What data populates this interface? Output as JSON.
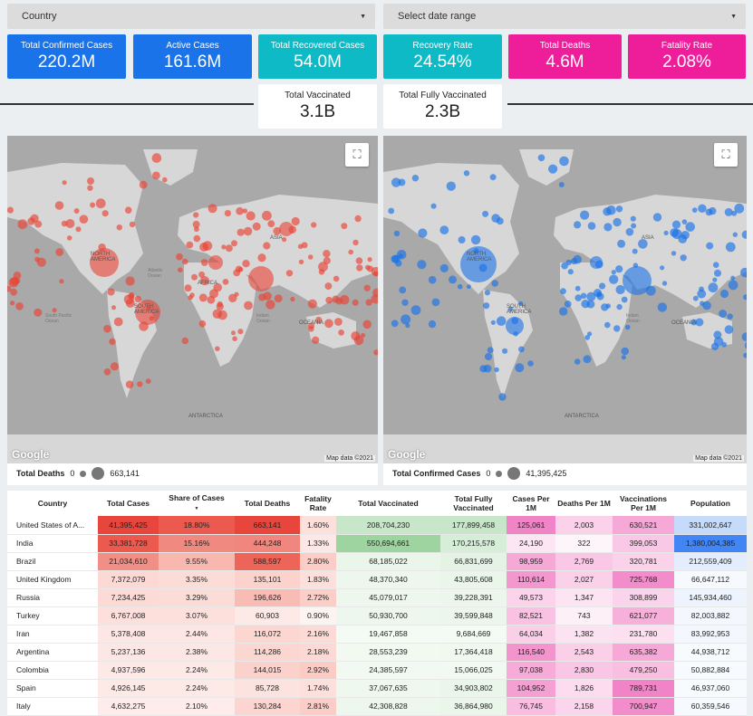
{
  "filters": {
    "country_label": "Country",
    "date_label": "Select date range"
  },
  "kpis": [
    {
      "label": "Total Confirmed Cases",
      "value": "220.2M",
      "color": "#1a73e8"
    },
    {
      "label": "Active Cases",
      "value": "161.6M",
      "color": "#1a73e8"
    },
    {
      "label": "Total Recovered Cases",
      "value": "54.0M",
      "color": "#0ebac5"
    },
    {
      "label": "Recovery Rate",
      "value": "24.54%",
      "color": "#0ebac5"
    },
    {
      "label": "Total Deaths",
      "value": "4.6M",
      "color": "#ee1e9b"
    },
    {
      "label": "Fatality Rate",
      "value": "2.08%",
      "color": "#ee1e9b"
    }
  ],
  "vaccine_kpis": [
    {
      "label": "Total Vaccinated",
      "value": "3.1B"
    },
    {
      "label": "Total Fully Vaccinated",
      "value": "2.3B"
    }
  ],
  "map_left": {
    "legend_title": "Total Deaths",
    "legend_min": "0",
    "legend_max": "663,141",
    "bubble_color": "#ea4335",
    "google": "Google",
    "map_data": "Map data ©2021"
  },
  "map_right": {
    "legend_title": "Total Confirmed Cases",
    "legend_min": "0",
    "legend_max": "41,395,425",
    "bubble_color": "#1a73e8",
    "google": "Google",
    "map_data": "Map data ©2021"
  },
  "map_labels": {
    "north_america": "NORTH AMERICA",
    "south_america": "SOUTH AMERICA",
    "africa": "AFRICA",
    "asia": "ASIA",
    "oceania": "OCEANIA",
    "antarctica": "ANTARCTICA",
    "atlantic": "Atlantic Ocean",
    "indian": "Indian Ocean",
    "south_pacific": "South Pacific Ocean"
  },
  "table": {
    "headers": [
      "Country",
      "Total Cases",
      "Share of Cases",
      "Total Deaths",
      "Fatality Rate",
      "Total Vaccinated",
      "Total Fully Vaccinated",
      "Cases Per 1M",
      "Deaths Per 1M",
      "Vaccinations Per 1M",
      "Population"
    ],
    "sort_indicator": "▼",
    "rows": [
      [
        "United States of A...",
        "41,395,425",
        "18.80%",
        "663,141",
        "1.60%",
        "208,704,230",
        "177,899,458",
        "125,061",
        "2,003",
        "630,521",
        "331,002,647"
      ],
      [
        "India",
        "33,381,728",
        "15.16%",
        "444,248",
        "1.33%",
        "550,694,661",
        "170,215,578",
        "24,190",
        "322",
        "399,053",
        "1,380,004,385"
      ],
      [
        "Brazil",
        "21,034,610",
        "9.55%",
        "588,597",
        "2.80%",
        "68,185,022",
        "66,831,699",
        "98,959",
        "2,769",
        "320,781",
        "212,559,409"
      ],
      [
        "United Kingdom",
        "7,372,079",
        "3.35%",
        "135,101",
        "1.83%",
        "48,370,340",
        "43,805,608",
        "110,614",
        "2,027",
        "725,768",
        "66,647,112"
      ],
      [
        "Russia",
        "7,234,425",
        "3.29%",
        "196,626",
        "2.72%",
        "45,079,017",
        "39,228,391",
        "49,573",
        "1,347",
        "308,899",
        "145,934,460"
      ],
      [
        "Turkey",
        "6,767,008",
        "3.07%",
        "60,903",
        "0.90%",
        "50,930,700",
        "39,599,848",
        "82,521",
        "743",
        "621,077",
        "82,003,882"
      ],
      [
        "Iran",
        "5,378,408",
        "2.44%",
        "116,072",
        "2.16%",
        "19,467,858",
        "9,684,669",
        "64,034",
        "1,382",
        "231,780",
        "83,992,953"
      ],
      [
        "Argentina",
        "5,237,136",
        "2.38%",
        "114,286",
        "2.18%",
        "28,553,239",
        "17,364,418",
        "116,540",
        "2,543",
        "635,382",
        "44,938,712"
      ],
      [
        "Colombia",
        "4,937,596",
        "2.24%",
        "144,015",
        "2.92%",
        "24,385,597",
        "15,066,025",
        "97,038",
        "2,830",
        "479,250",
        "50,882,884"
      ],
      [
        "Spain",
        "4,926,145",
        "2.24%",
        "85,728",
        "1.74%",
        "37,067,635",
        "34,903,802",
        "104,952",
        "1,826",
        "789,731",
        "46,937,060"
      ],
      [
        "Italy",
        "4,632,275",
        "2.10%",
        "130,284",
        "2.81%",
        "42,308,828",
        "36,864,980",
        "76,745",
        "2,158",
        "700,947",
        "60,359,546"
      ]
    ],
    "colors": {
      "cases": [
        "#e8453c",
        "#ec5a4f",
        "#f08f85",
        "#fcd9d4",
        "#fcdbd6",
        "#fde0dc",
        "#fde6e3",
        "#fde7e4",
        "#fdeae7",
        "#fdeae7",
        "#fdecea"
      ],
      "share": [
        "#ec5a4f",
        "#f08a80",
        "#f8b8b0",
        "#fcdcd7",
        "#fcdcd7",
        "#fde0dc",
        "#fde6e3",
        "#fde7e4",
        "#fdeae7",
        "#fdeae7",
        "#fdecea"
      ],
      "deaths": [
        "#e8453c",
        "#f0867d",
        "#ed6459",
        "#fbd2cc",
        "#f8bcb5",
        "#fdeae7",
        "#fcd6d1",
        "#fcd7d2",
        "#fbd1cb",
        "#fde3df",
        "#fcd5d0"
      ],
      "fatality": [
        "#fde0dc",
        "#fde8e5",
        "#fbcdc6",
        "#fde0dc",
        "#fbcec8",
        "#fdf3f1",
        "#fcdad5",
        "#fcd9d4",
        "#fbcbc4",
        "#fde0dc",
        "#fbcdc6"
      ],
      "vacc": [
        "#c8e6c9",
        "#9ed4a0",
        "#eaf6ea",
        "#edf7ed",
        "#eef7ee",
        "#edf7ed",
        "#f4faf4",
        "#f1f9f1",
        "#f2f9f2",
        "#eff8ef",
        "#eef7ee"
      ],
      "fully": [
        "#c8e6c9",
        "#d6edd7",
        "#e5f3e5",
        "#eaf6ea",
        "#ecf6ec",
        "#ecf6ec",
        "#f4faf4",
        "#f0f8f0",
        "#f2f9f2",
        "#ebf6eb",
        "#eaf6ea"
      ],
      "cases1m": [
        "#f184c6",
        "#fde6f3",
        "#f6a9d7",
        "#f397cf",
        "#fbd3eb",
        "#f9c2e3",
        "#fad0e9",
        "#f394cd",
        "#f6abd8",
        "#f5a0d2",
        "#f8bde0"
      ],
      "deaths1m": [
        "#fbd2ea",
        "#fef5fa",
        "#fac8e6",
        "#fbd1ea",
        "#fce4f2",
        "#fdf0f7",
        "#fce3f1",
        "#fbcfe8",
        "#fac6e5",
        "#fcdcee",
        "#fbd5eb"
      ],
      "vacc1m": [
        "#f6a9d7",
        "#f9c8e6",
        "#fad2ea",
        "#f28ccb",
        "#fad4ea",
        "#f7b0d9",
        "#fce0f0",
        "#f6a8d6",
        "#f8bfe1",
        "#f184c6",
        "#f28ccb"
      ],
      "pop": [
        "#c6dafa",
        "#4285f4",
        "#e3edfd",
        "#f6f9fe",
        "#eef4fe",
        "#f4f8fe",
        "#f4f8fe",
        "#f8fbfe",
        "#f7fafe",
        "#f8fbfe",
        "#f6f9fe"
      ]
    }
  }
}
